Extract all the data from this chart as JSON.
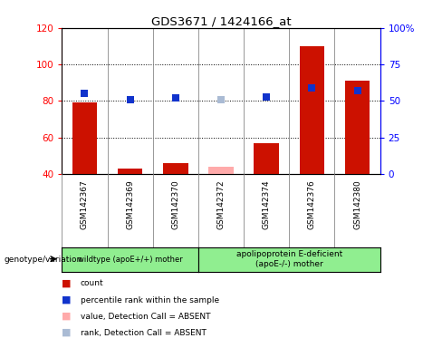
{
  "title": "GDS3671 / 1424166_at",
  "samples": [
    "GSM142367",
    "GSM142369",
    "GSM142370",
    "GSM142372",
    "GSM142374",
    "GSM142376",
    "GSM142380"
  ],
  "bar_values": [
    79,
    43,
    46,
    44,
    57,
    110,
    91
  ],
  "bar_absent": [
    false,
    false,
    false,
    true,
    false,
    false,
    false
  ],
  "rank_values": [
    55,
    51,
    52,
    51,
    53,
    59,
    57
  ],
  "rank_absent": [
    false,
    false,
    false,
    true,
    false,
    false,
    false
  ],
  "ylim_left": [
    40,
    120
  ],
  "ylim_right": [
    0,
    100
  ],
  "left_ticks": [
    40,
    60,
    80,
    100,
    120
  ],
  "right_ticks": [
    0,
    25,
    50,
    75,
    100
  ],
  "right_tick_labels": [
    "0",
    "25",
    "50",
    "75",
    "100%"
  ],
  "bar_color_present": "#cc1100",
  "bar_color_absent": "#ffaaaa",
  "rank_color_present": "#1133cc",
  "rank_color_absent": "#aabbd4",
  "group1_label": "wildtype (apoE+/+) mother",
  "group2_label": "apolipoprotein E-deficient\n(apoE-/-) mother",
  "group1_count": 3,
  "group2_count": 4,
  "total_samples": 7,
  "genotype_label": "genotype/variation",
  "legend_items": [
    {
      "label": "count",
      "color": "#cc1100"
    },
    {
      "label": "percentile rank within the sample",
      "color": "#1133cc"
    },
    {
      "label": "value, Detection Call = ABSENT",
      "color": "#ffaaaa"
    },
    {
      "label": "rank, Detection Call = ABSENT",
      "color": "#aabbd4"
    }
  ],
  "background_color": "#ffffff",
  "grid_color": "#000000",
  "bar_width": 0.55
}
